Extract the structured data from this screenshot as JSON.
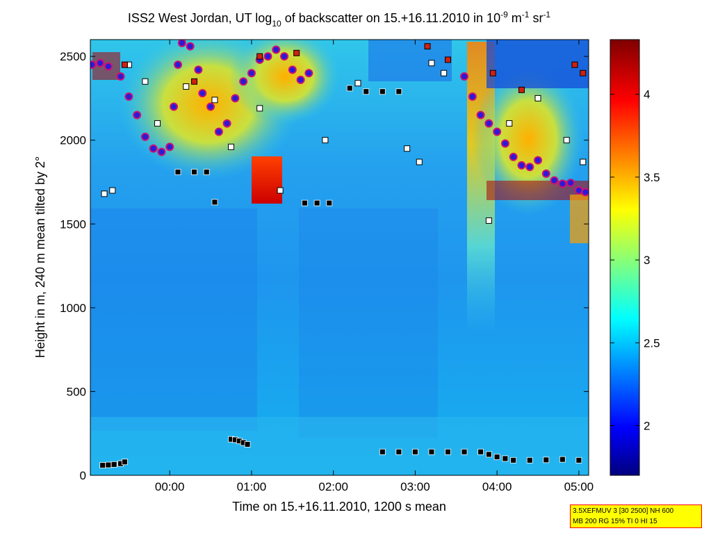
{
  "chart_data": {
    "type": "heatmap",
    "title": {
      "part1": "ISS2 West Jordan, UT log",
      "part1_sub": "10",
      "part2": " of backscatter on 15.+16.11.2010 in 10",
      "part2_sup": "-9",
      "part3": " m",
      "part3_sup": "-1",
      "part4": " sr",
      "part4_sup": "-1"
    },
    "xlabel": "Time on 15.+16.11.2010, 1200 s mean",
    "ylabel": "Height in m, 240 m mean tilted by 2°",
    "x_ticks": [
      {
        "label": "00:00",
        "hours": 0
      },
      {
        "label": "01:00",
        "hours": 1
      },
      {
        "label": "02:00",
        "hours": 2
      },
      {
        "label": "03:00",
        "hours": 3
      },
      {
        "label": "04:00",
        "hours": 4
      },
      {
        "label": "05:00",
        "hours": 5
      }
    ],
    "xlim_hours": [
      -0.97,
      5.12
    ],
    "y_ticks": [
      0,
      500,
      1000,
      1500,
      2000,
      2500
    ],
    "ylim": [
      0,
      2600
    ],
    "colorbar": {
      "ticks": [
        "2",
        "2.5",
        "3",
        "3.5",
        "4"
      ],
      "tick_values": [
        2,
        2.5,
        3,
        3.5,
        4
      ],
      "range": [
        1.7,
        4.33
      ],
      "colormap": "jet"
    },
    "series": [
      {
        "marker": "square-black",
        "points": [
          [
            -0.82,
            60
          ],
          [
            -0.75,
            62
          ],
          [
            -0.68,
            65
          ],
          [
            -0.6,
            70
          ],
          [
            -0.55,
            80
          ],
          [
            0.75,
            215
          ],
          [
            0.8,
            212
          ],
          [
            0.85,
            205
          ],
          [
            0.9,
            195
          ],
          [
            0.95,
            185
          ],
          [
            2.6,
            140
          ],
          [
            2.8,
            140
          ],
          [
            3.0,
            140
          ],
          [
            3.2,
            140
          ],
          [
            3.4,
            140
          ],
          [
            3.6,
            140
          ],
          [
            3.8,
            140
          ],
          [
            3.9,
            125
          ],
          [
            4.0,
            110
          ],
          [
            4.1,
            100
          ],
          [
            4.2,
            90
          ],
          [
            4.4,
            90
          ],
          [
            4.6,
            92
          ],
          [
            4.8,
            95
          ],
          [
            5.0,
            90
          ],
          [
            0.1,
            1810
          ],
          [
            0.3,
            1810
          ],
          [
            0.45,
            1810
          ],
          [
            0.55,
            1630
          ],
          [
            1.65,
            1625
          ],
          [
            1.8,
            1625
          ],
          [
            1.95,
            1625
          ],
          [
            2.2,
            2310
          ],
          [
            2.4,
            2290
          ],
          [
            2.6,
            2290
          ],
          [
            2.8,
            2290
          ]
        ]
      },
      {
        "marker": "circle-blue",
        "points": [
          [
            -0.95,
            2450
          ],
          [
            -0.85,
            2460
          ],
          [
            -0.75,
            2440
          ],
          [
            -0.6,
            2380
          ],
          [
            -0.5,
            2260
          ],
          [
            -0.4,
            2150
          ],
          [
            -0.3,
            2020
          ],
          [
            -0.2,
            1950
          ],
          [
            -0.1,
            1930
          ],
          [
            0.0,
            1960
          ],
          [
            0.05,
            2200
          ],
          [
            0.1,
            2450
          ],
          [
            0.15,
            2580
          ],
          [
            0.25,
            2560
          ],
          [
            0.35,
            2420
          ],
          [
            0.4,
            2280
          ],
          [
            0.5,
            2200
          ],
          [
            0.6,
            2050
          ],
          [
            0.7,
            2100
          ],
          [
            0.8,
            2250
          ],
          [
            0.9,
            2350
          ],
          [
            1.0,
            2400
          ],
          [
            1.1,
            2480
          ],
          [
            1.2,
            2500
          ],
          [
            1.3,
            2540
          ],
          [
            1.4,
            2500
          ],
          [
            1.5,
            2420
          ],
          [
            1.6,
            2360
          ],
          [
            1.7,
            2400
          ],
          [
            3.6,
            2380
          ],
          [
            3.7,
            2260
          ],
          [
            3.8,
            2150
          ],
          [
            3.9,
            2100
          ],
          [
            4.0,
            2050
          ],
          [
            4.1,
            1980
          ],
          [
            4.2,
            1900
          ],
          [
            4.3,
            1850
          ],
          [
            4.4,
            1840
          ],
          [
            4.5,
            1880
          ],
          [
            4.6,
            1800
          ],
          [
            4.7,
            1760
          ],
          [
            4.8,
            1740
          ],
          [
            4.9,
            1745
          ],
          [
            5.0,
            1700
          ],
          [
            5.08,
            1690
          ]
        ]
      },
      {
        "marker": "square-white",
        "points": [
          [
            -0.8,
            1680
          ],
          [
            -0.7,
            1700
          ],
          [
            -0.5,
            2450
          ],
          [
            -0.3,
            2350
          ],
          [
            -0.15,
            2100
          ],
          [
            0.2,
            2320
          ],
          [
            0.55,
            2240
          ],
          [
            0.75,
            1960
          ],
          [
            1.1,
            2190
          ],
          [
            1.35,
            1700
          ],
          [
            1.9,
            2000
          ],
          [
            2.3,
            2340
          ],
          [
            2.9,
            1950
          ],
          [
            3.05,
            1870
          ],
          [
            3.2,
            2460
          ],
          [
            3.35,
            2400
          ],
          [
            3.9,
            1520
          ],
          [
            4.15,
            2100
          ],
          [
            4.5,
            2250
          ],
          [
            4.85,
            2000
          ],
          [
            5.05,
            1870
          ]
        ]
      },
      {
        "marker": "square-red",
        "points": [
          [
            -0.55,
            2450
          ],
          [
            0.3,
            2350
          ],
          [
            1.1,
            2500
          ],
          [
            1.55,
            2520
          ],
          [
            3.15,
            2560
          ],
          [
            3.4,
            2480
          ],
          [
            3.95,
            2400
          ],
          [
            4.3,
            2300
          ],
          [
            4.95,
            2450
          ],
          [
            5.05,
            2400
          ]
        ]
      }
    ],
    "annotations": {
      "box_line1": "3.5XEFMUV 3 [30 2500] NH 600",
      "box_line2": "MB 200 RG 15% TI 0 HI 15"
    }
  }
}
